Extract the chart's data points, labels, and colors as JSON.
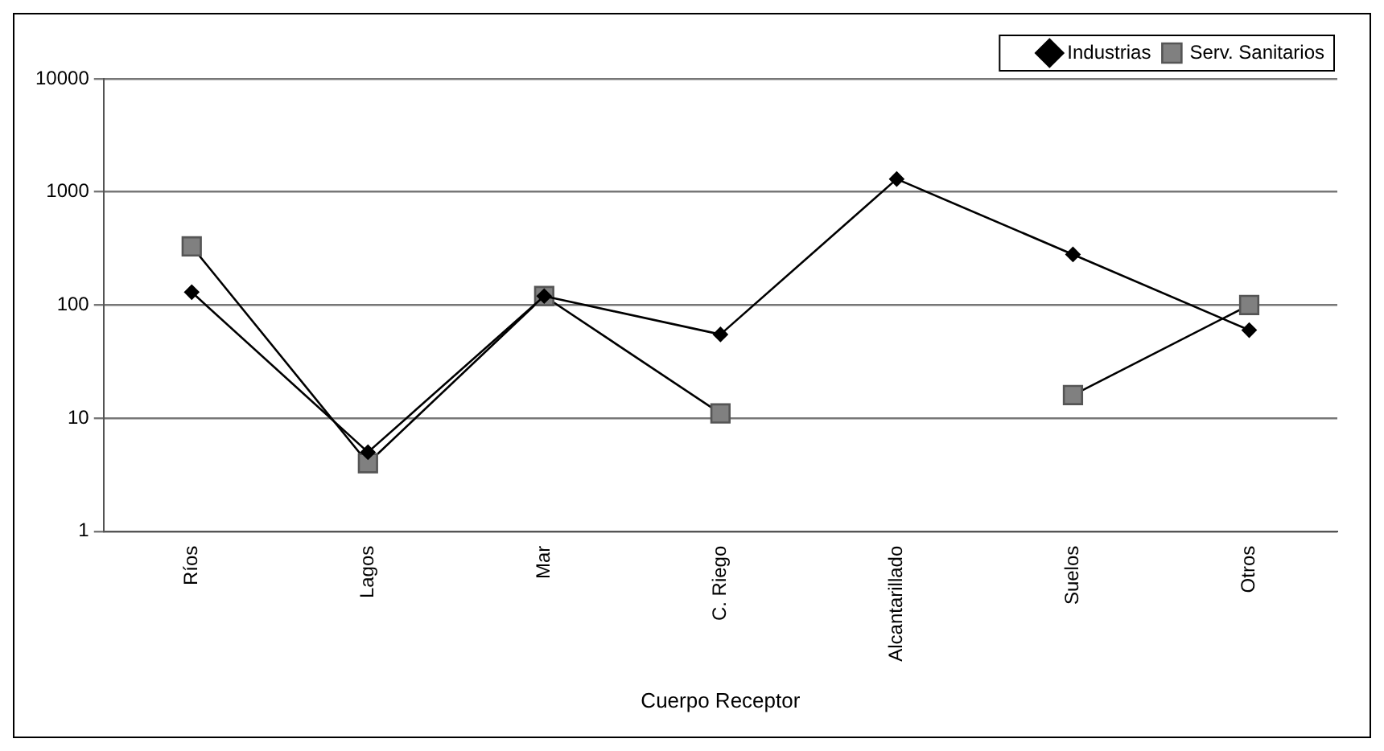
{
  "chart_data": {
    "type": "line",
    "xlabel": "Cuerpo Receptor",
    "categories": [
      "Ríos",
      "Lagos",
      "Mar",
      "C. Riego",
      "Alcantarillado",
      "Suelos",
      "Otros"
    ],
    "series": [
      {
        "name": "Industrias",
        "color": "#000000",
        "marker": "diamond",
        "values": [
          130,
          5,
          120,
          55,
          1300,
          280,
          60
        ]
      },
      {
        "name": "Serv. Sanitarios",
        "color": "#808080",
        "marker": "square",
        "values": [
          330,
          4,
          120,
          11,
          null,
          16,
          100
        ]
      }
    ],
    "log": "y",
    "ylim": [
      1,
      10000
    ],
    "yticks": [
      1,
      10,
      100,
      1000,
      10000
    ],
    "grid": "y",
    "legend": "top right",
    "line_style": "solid"
  }
}
